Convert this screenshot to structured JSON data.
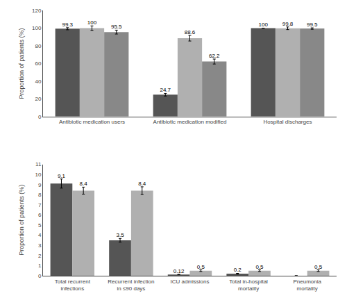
{
  "chart_data": [
    {
      "type": "bar",
      "categories": [
        "Antibiotic medication users",
        "Antibiotic medication modified",
        "Hospital discharges"
      ],
      "series": [
        {
          "color": "#555555",
          "values": [
            99.3,
            24.7,
            100
          ],
          "errors": [
            1.2,
            1.5,
            0.0
          ]
        },
        {
          "color": "#b0b0b0",
          "values": [
            100,
            88.6,
            99.8
          ],
          "errors": [
            2.5,
            3.2,
            1.5
          ]
        },
        {
          "color": "#888888",
          "values": [
            95.5,
            62.2,
            99.5
          ],
          "errors": [
            2.2,
            2.8,
            0.8
          ]
        }
      ],
      "ylim": [
        0,
        120
      ],
      "yticks": [
        0,
        20,
        40,
        60,
        80,
        100,
        120
      ],
      "ylabel": "Proportion of patients (%)",
      "data_labels": true,
      "grid": false
    },
    {
      "type": "bar",
      "categories": [
        "Total recurrent\ninfections",
        "Recurrent infection\nin ≤90 days",
        "ICU admissions",
        "Total in-hospital\nmortality",
        "Pneumonia\nmortality"
      ],
      "series": [
        {
          "color": "#555555",
          "values": [
            9.1,
            3.5,
            0.12,
            0.2,
            0.0
          ],
          "value_labels": [
            "9.1",
            "3.5",
            "0.12",
            "0.2",
            null
          ],
          "errors": [
            0.45,
            0.18,
            0.02,
            0.04,
            0.0
          ]
        },
        {
          "color": "#b0b0b0",
          "values": [
            8.4,
            8.4,
            0.5,
            0.5,
            0.5
          ],
          "errors": [
            0.35,
            0.38,
            0.08,
            0.08,
            0.08
          ]
        }
      ],
      "ylim": [
        0,
        11
      ],
      "yticks": [
        0,
        1,
        2,
        3,
        4,
        5,
        6,
        7,
        8,
        9,
        10,
        11
      ],
      "ylabel": "Proportion of patients (%)",
      "data_labels": true,
      "grid": false
    }
  ]
}
